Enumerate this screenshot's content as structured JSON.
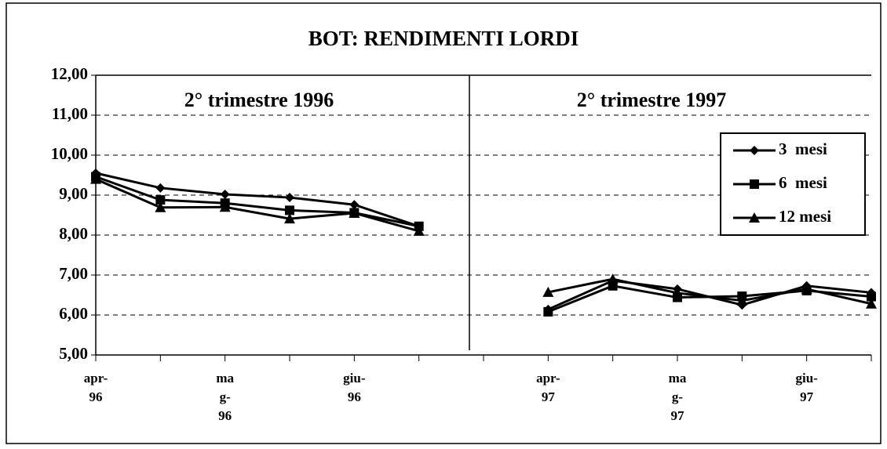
{
  "chart_data": {
    "type": "line",
    "title": "BOT: RENDIMENTI LORDI",
    "annotations": [
      "2° trimestre 1996",
      "2° trimestre 1997"
    ],
    "categories": [
      "apr-\n96",
      null,
      "ma\ng-\n96",
      null,
      "giu-\n96",
      null,
      null,
      "apr-\n97",
      null,
      "ma\ng-\n97",
      null,
      "giu-\n97",
      null
    ],
    "series": [
      {
        "name": "3  mesi",
        "color": "#000000",
        "marker": "diamond",
        "values": [
          9.55,
          9.18,
          9.02,
          8.94,
          8.76,
          8.22,
          null,
          6.14,
          6.86,
          6.65,
          6.25,
          6.73,
          6.56
        ]
      },
      {
        "name": "6  mesi",
        "color": "#000000",
        "marker": "square",
        "values": [
          9.46,
          8.88,
          8.8,
          8.62,
          8.56,
          8.22,
          null,
          6.08,
          6.73,
          6.44,
          6.47,
          6.61,
          6.46
        ]
      },
      {
        "name": "12 mesi",
        "color": "#000000",
        "marker": "triangle",
        "values": [
          9.4,
          8.69,
          8.7,
          8.41,
          8.55,
          8.1,
          null,
          6.57,
          6.9,
          6.55,
          6.36,
          6.65,
          6.28
        ]
      }
    ],
    "ylim": [
      5,
      12
    ],
    "yticks": [
      {
        "value": 5,
        "label": "5,00"
      },
      {
        "value": 6,
        "label": "6,00"
      },
      {
        "value": 7,
        "label": "7,00"
      },
      {
        "value": 8,
        "label": "8,00"
      },
      {
        "value": 9,
        "label": "9,00"
      },
      {
        "value": 10,
        "label": "10,00"
      },
      {
        "value": 11,
        "label": "11,00"
      },
      {
        "value": 12,
        "label": "12,00"
      }
    ],
    "grid": true,
    "legend": "upper right"
  }
}
